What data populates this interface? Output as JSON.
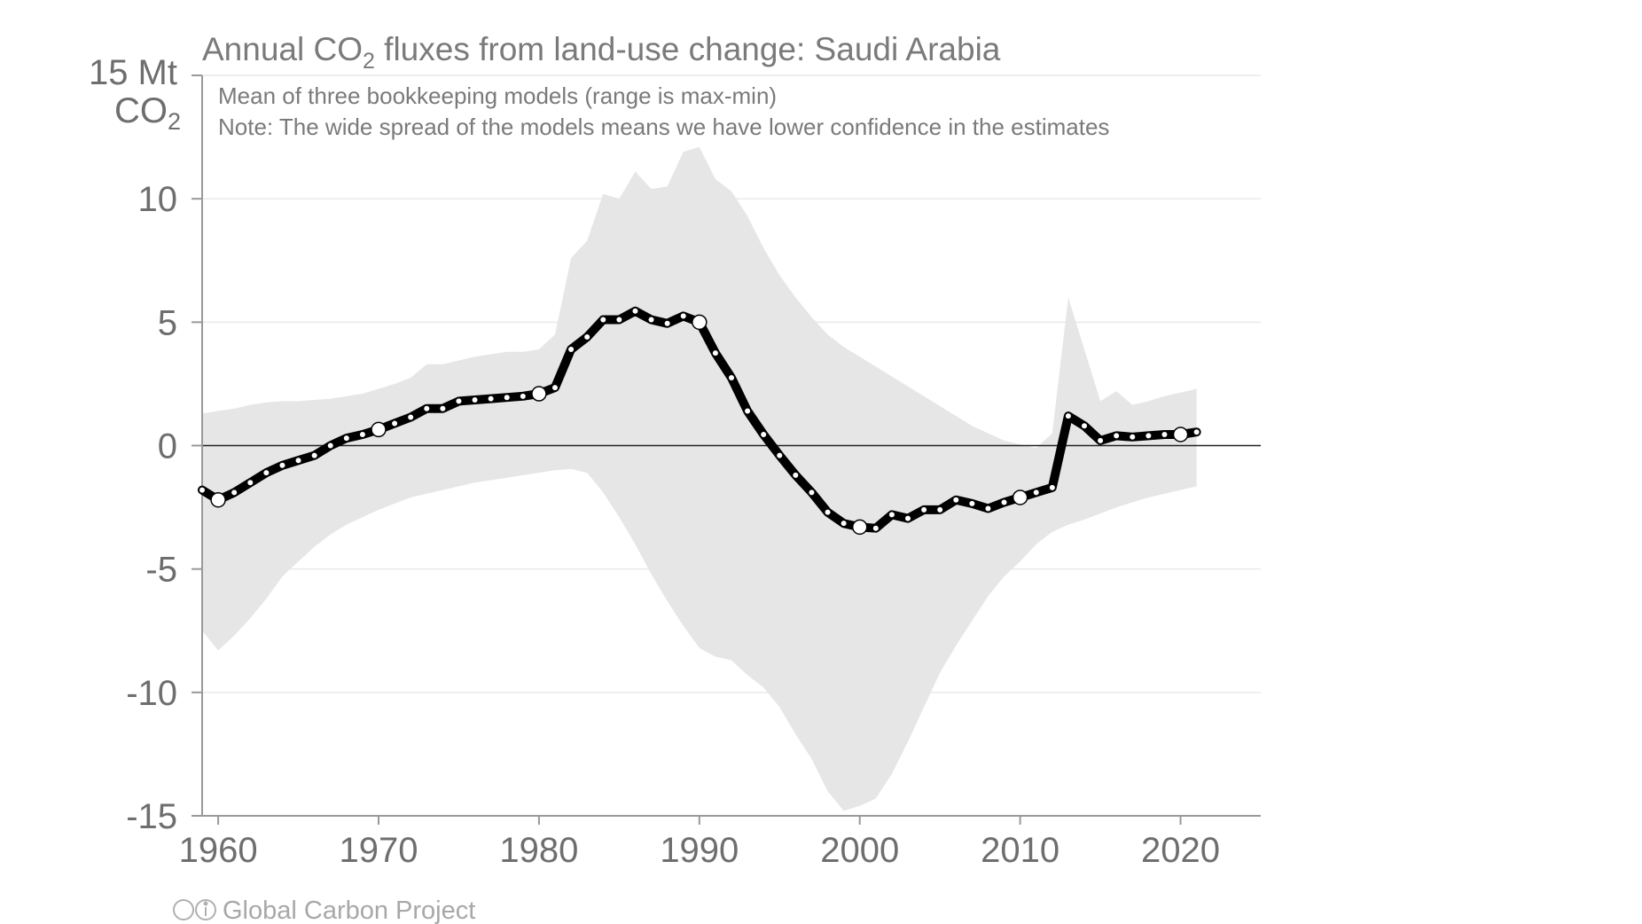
{
  "chart_data": {
    "type": "line",
    "title": "Annual CO",
    "title_sub": "2",
    "title_rest": " fluxes from land-use change: Saudi Arabia",
    "subtitle_1": "Mean of three bookkeeping models (range is max-min)",
    "subtitle_2": "Note: The wide spread of the models means we have lower confidence in the estimates",
    "y_unit_line1": "15 Mt",
    "y_unit_line2": "CO",
    "y_unit_sub": "2",
    "credit": "Global Carbon Project",
    "xlim": [
      1959,
      2025
    ],
    "ylim": [
      -15,
      15
    ],
    "x_ticks": [
      1960,
      1970,
      1980,
      1990,
      2000,
      2010,
      2020
    ],
    "x_tick_labels": [
      "1960",
      "1970",
      "1980",
      "1990",
      "2000",
      "2010",
      "2020"
    ],
    "y_ticks": [
      10,
      5,
      0,
      -5,
      -10,
      -15
    ],
    "y_tick_labels": [
      "10",
      "5",
      "0",
      "-5",
      "-10",
      "-15"
    ],
    "grid": true,
    "colors": {
      "line": "#000000",
      "band": "#e6e6e6",
      "grid": "#e9e9e9",
      "axis": "#999999",
      "zero": "#222222"
    },
    "series": [
      {
        "x": [
          1959,
          1960,
          1961,
          1962,
          1963,
          1964,
          1965,
          1966,
          1967,
          1968,
          1969,
          1970,
          1971,
          1972,
          1973,
          1974,
          1975,
          1976,
          1977,
          1978,
          1979,
          1980,
          1981,
          1982,
          1983,
          1984,
          1985,
          1986,
          1987,
          1988,
          1989,
          1990,
          1991,
          1992,
          1993,
          1994,
          1995,
          1996,
          1997,
          1998,
          1999,
          2000,
          2001,
          2002,
          2003,
          2004,
          2005,
          2006,
          2007,
          2008,
          2009,
          2010,
          2011,
          2012,
          2013,
          2014,
          2015,
          2016,
          2017,
          2018,
          2019,
          2020,
          2021
        ],
        "y": [
          -1.8,
          -2.2,
          -1.9,
          -1.5,
          -1.1,
          -0.8,
          -0.6,
          -0.4,
          0.0,
          0.3,
          0.45,
          0.65,
          0.9,
          1.15,
          1.5,
          1.5,
          1.8,
          1.85,
          1.9,
          1.95,
          2.0,
          2.1,
          2.35,
          3.9,
          4.4,
          5.1,
          5.1,
          5.45,
          5.1,
          4.95,
          5.25,
          5.0,
          3.75,
          2.75,
          1.4,
          0.45,
          -0.4,
          -1.2,
          -1.9,
          -2.7,
          -3.15,
          -3.3,
          -3.35,
          -2.8,
          -2.95,
          -2.6,
          -2.6,
          -2.2,
          -2.35,
          -2.55,
          -2.3,
          -2.1,
          -1.9,
          -1.7,
          1.2,
          0.8,
          0.2,
          0.4,
          0.35,
          0.4,
          0.45,
          0.45,
          0.55
        ]
      }
    ],
    "range": {
      "x": [
        1959,
        1960,
        1961,
        1962,
        1963,
        1964,
        1965,
        1966,
        1967,
        1968,
        1969,
        1970,
        1971,
        1972,
        1973,
        1974,
        1975,
        1976,
        1977,
        1978,
        1979,
        1980,
        1981,
        1982,
        1983,
        1984,
        1985,
        1986,
        1987,
        1988,
        1989,
        1990,
        1991,
        1992,
        1993,
        1994,
        1995,
        1996,
        1997,
        1998,
        1999,
        2000,
        2001,
        2002,
        2003,
        2004,
        2005,
        2006,
        2007,
        2008,
        2009,
        2010,
        2011,
        2012,
        2013,
        2014,
        2015,
        2016,
        2017,
        2018,
        2019,
        2020,
        2021
      ],
      "upper": [
        1.3,
        1.4,
        1.5,
        1.65,
        1.75,
        1.8,
        1.8,
        1.85,
        1.9,
        2.0,
        2.1,
        2.3,
        2.5,
        2.75,
        3.3,
        3.3,
        3.45,
        3.6,
        3.7,
        3.8,
        3.8,
        3.9,
        4.5,
        7.6,
        8.3,
        10.2,
        10.0,
        11.1,
        10.4,
        10.5,
        11.9,
        12.1,
        10.8,
        10.3,
        9.3,
        8.0,
        6.9,
        6.0,
        5.2,
        4.5,
        4.0,
        3.6,
        3.2,
        2.8,
        2.4,
        2.0,
        1.6,
        1.2,
        0.8,
        0.5,
        0.2,
        0.05,
        -0.1,
        0.5,
        6.0,
        3.9,
        1.8,
        2.2,
        1.65,
        1.8,
        2.0,
        2.15,
        2.3
      ],
      "lower": [
        -7.5,
        -8.3,
        -7.7,
        -7.0,
        -6.2,
        -5.3,
        -4.7,
        -4.1,
        -3.6,
        -3.2,
        -2.9,
        -2.6,
        -2.35,
        -2.1,
        -1.95,
        -1.8,
        -1.65,
        -1.5,
        -1.4,
        -1.3,
        -1.2,
        -1.1,
        -1.0,
        -0.95,
        -1.1,
        -1.9,
        -2.9,
        -4.0,
        -5.2,
        -6.3,
        -7.3,
        -8.2,
        -8.55,
        -8.7,
        -9.3,
        -9.8,
        -10.6,
        -11.7,
        -12.7,
        -14.0,
        -14.8,
        -14.6,
        -14.3,
        -13.3,
        -12.0,
        -10.6,
        -9.2,
        -8.1,
        -7.1,
        -6.1,
        -5.3,
        -4.7,
        -4.0,
        -3.5,
        -3.2,
        -3.0,
        -2.75,
        -2.5,
        -2.3,
        -2.1,
        -1.95,
        -1.8,
        -1.65
      ]
    },
    "highlight_years": [
      1960,
      1970,
      1980,
      1990,
      2000,
      2010,
      2020
    ]
  }
}
